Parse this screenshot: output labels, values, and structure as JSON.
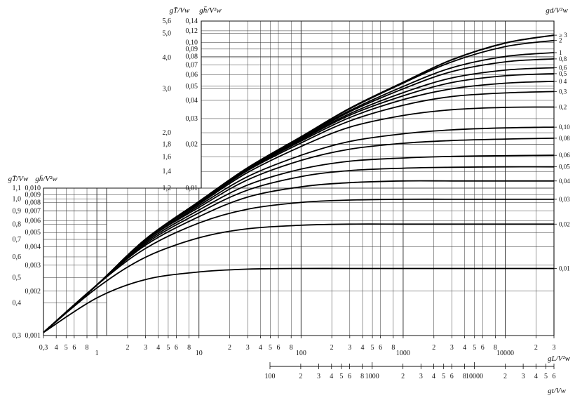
{
  "chart_data": {
    "type": "line",
    "title": "",
    "x_axis_fetch": {
      "label": "gL/V²w",
      "scale": "log",
      "range": [
        0.3,
        30000
      ],
      "ticks": [
        {
          "v": 0.3,
          "t": "0,3"
        },
        {
          "v": 0.4,
          "t": "4"
        },
        {
          "v": 0.5,
          "t": "5"
        },
        {
          "v": 0.6,
          "t": "6"
        },
        {
          "v": 0.8,
          "t": "8"
        },
        {
          "v": 1,
          "t": "1"
        },
        {
          "v": 2,
          "t": "2"
        },
        {
          "v": 3,
          "t": "3"
        },
        {
          "v": 4,
          "t": "4"
        },
        {
          "v": 5,
          "t": "5"
        },
        {
          "v": 6,
          "t": "6"
        },
        {
          "v": 8,
          "t": "8"
        },
        {
          "v": 10,
          "t": "10"
        },
        {
          "v": 20,
          "t": "2"
        },
        {
          "v": 30,
          "t": "3"
        },
        {
          "v": 40,
          "t": "4"
        },
        {
          "v": 50,
          "t": "5"
        },
        {
          "v": 60,
          "t": "6"
        },
        {
          "v": 80,
          "t": "8"
        },
        {
          "v": 100,
          "t": "100"
        },
        {
          "v": 200,
          "t": "2"
        },
        {
          "v": 300,
          "t": "3"
        },
        {
          "v": 400,
          "t": "4"
        },
        {
          "v": 500,
          "t": "5"
        },
        {
          "v": 600,
          "t": "6"
        },
        {
          "v": 800,
          "t": "8"
        },
        {
          "v": 1000,
          "t": "1000"
        },
        {
          "v": 2000,
          "t": "2"
        },
        {
          "v": 3000,
          "t": "3"
        },
        {
          "v": 4000,
          "t": "4"
        },
        {
          "v": 5000,
          "t": "5"
        },
        {
          "v": 6000,
          "t": "6"
        },
        {
          "v": 8000,
          "t": "8"
        },
        {
          "v": 10000,
          "t": "10000"
        },
        {
          "v": 20000,
          "t": "2"
        },
        {
          "v": 30000,
          "t": "3"
        }
      ]
    },
    "x_axis_duration": {
      "label": "gt/Vw",
      "scale": "log",
      "range": [
        100,
        60000
      ],
      "ticks": [
        {
          "v": 100,
          "t": "100"
        },
        {
          "v": 200,
          "t": "2"
        },
        {
          "v": 300,
          "t": "3"
        },
        {
          "v": 400,
          "t": "4"
        },
        {
          "v": 500,
          "t": "5"
        },
        {
          "v": 600,
          "t": "6"
        },
        {
          "v": 800,
          "t": "8"
        },
        {
          "v": 1000,
          "t": "1000"
        },
        {
          "v": 2000,
          "t": "2"
        },
        {
          "v": 3000,
          "t": "3"
        },
        {
          "v": 4000,
          "t": "4"
        },
        {
          "v": 5000,
          "t": "5"
        },
        {
          "v": 6000,
          "t": "6"
        },
        {
          "v": 8000,
          "t": "8"
        },
        {
          "v": 10000,
          "t": "10000"
        },
        {
          "v": 20000,
          "t": "2"
        },
        {
          "v": 30000,
          "t": "3"
        },
        {
          "v": 40000,
          "t": "4"
        },
        {
          "v": 50000,
          "t": "5"
        },
        {
          "v": 60000,
          "t": "6"
        }
      ]
    },
    "y_axis_lower_period": {
      "label": "gT̄/Vw",
      "scale": "log",
      "range": [
        0.3,
        1.1
      ],
      "ticks": [
        {
          "v": 1.1,
          "t": "1,1"
        },
        {
          "v": 1.0,
          "t": "1,0"
        },
        {
          "v": 0.9,
          "t": "0,9"
        },
        {
          "v": 0.8,
          "t": "0,8"
        },
        {
          "v": 0.7,
          "t": "0,7"
        },
        {
          "v": 0.6,
          "t": "0,6"
        },
        {
          "v": 0.5,
          "t": "0,5"
        },
        {
          "v": 0.4,
          "t": "0,4"
        },
        {
          "v": 0.3,
          "t": "0,3"
        }
      ]
    },
    "y_axis_lower_height": {
      "label": "gh̄/V²w",
      "scale": "log",
      "range": [
        0.001,
        0.01
      ],
      "ticks": [
        {
          "v": 0.01,
          "t": "0,010"
        },
        {
          "v": 0.009,
          "t": "0,009"
        },
        {
          "v": 0.008,
          "t": "0,008"
        },
        {
          "v": 0.007,
          "t": "0,007"
        },
        {
          "v": 0.006,
          "t": "0,006"
        },
        {
          "v": 0.005,
          "t": "0,005"
        },
        {
          "v": 0.004,
          "t": "0,004"
        },
        {
          "v": 0.003,
          "t": "0,003"
        },
        {
          "v": 0.002,
          "t": "0,002"
        },
        {
          "v": 0.001,
          "t": "0,001"
        }
      ]
    },
    "y_axis_upper_period": {
      "label": "gT̄/Vw",
      "scale": "log",
      "range": [
        1.2,
        5.6
      ],
      "ticks": [
        {
          "v": 5.6,
          "t": "5,6"
        },
        {
          "v": 5.0,
          "t": "5,0"
        },
        {
          "v": 4.0,
          "t": "4,0"
        },
        {
          "v": 3.0,
          "t": "3,0"
        },
        {
          "v": 2.0,
          "t": "2,0"
        },
        {
          "v": 1.8,
          "t": "1,8"
        },
        {
          "v": 1.6,
          "t": "1,6"
        },
        {
          "v": 1.4,
          "t": "1,4"
        },
        {
          "v": 1.2,
          "t": "1,2"
        }
      ]
    },
    "y_axis_upper_height": {
      "label": "gh̄/V²w",
      "scale": "log",
      "range": [
        0.01,
        0.14
      ],
      "ticks": [
        {
          "v": 0.14,
          "t": "0,14"
        },
        {
          "v": 0.12,
          "t": "0,12"
        },
        {
          "v": 0.1,
          "t": "0,10"
        },
        {
          "v": 0.09,
          "t": "0,09"
        },
        {
          "v": 0.08,
          "t": "0,08"
        },
        {
          "v": 0.07,
          "t": "0,07"
        },
        {
          "v": 0.06,
          "t": "0,06"
        },
        {
          "v": 0.05,
          "t": "0,05"
        },
        {
          "v": 0.04,
          "t": "0,04"
        },
        {
          "v": 0.03,
          "t": "0,03"
        },
        {
          "v": 0.02,
          "t": "0,02"
        },
        {
          "v": 0.01,
          "t": "0,01"
        }
      ]
    },
    "depth_axis_label": "gd/V²w",
    "series": [
      {
        "name": "0,01",
        "x": [
          0.3,
          1,
          3,
          10,
          30,
          100,
          300,
          1000,
          3000,
          10000,
          30000
        ],
        "y": [
          0.00105,
          0.0018,
          0.0024,
          0.0027,
          0.00282,
          0.00285,
          0.00285,
          0.00285,
          0.00285,
          0.00285,
          0.00285
        ]
      },
      {
        "name": "0,02",
        "x": [
          0.3,
          1,
          3,
          10,
          30,
          100,
          300,
          1000,
          3000,
          10000,
          30000
        ],
        "y": [
          0.00105,
          0.0021,
          0.0034,
          0.0046,
          0.0053,
          0.0056,
          0.0057,
          0.0057,
          0.0057,
          0.0057,
          0.0057
        ]
      },
      {
        "name": "0,03",
        "x": [
          0.3,
          1,
          3,
          10,
          30,
          100,
          300,
          1000,
          3000,
          10000,
          30000
        ],
        "y": [
          0.00105,
          0.0022,
          0.0039,
          0.0058,
          0.0072,
          0.008,
          0.0083,
          0.0084,
          0.0084,
          0.0084,
          0.0084
        ]
      },
      {
        "name": "0,04",
        "x": [
          0.3,
          1,
          3,
          10,
          30,
          100,
          300,
          1000,
          3000,
          10000,
          30000
        ],
        "y": [
          0.00105,
          0.0022,
          0.0041,
          0.0064,
          0.0087,
          0.0102,
          0.0109,
          0.0112,
          0.0112,
          0.0112,
          0.0112
        ]
      },
      {
        "name": "0,05",
        "x": [
          0.3,
          1,
          3,
          10,
          30,
          100,
          300,
          1000,
          3000,
          10000,
          30000
        ],
        "y": [
          0.00105,
          0.0022,
          0.0042,
          0.0068,
          0.0097,
          0.012,
          0.0132,
          0.0137,
          0.0139,
          0.014,
          0.014
        ]
      },
      {
        "name": "0,06",
        "x": [
          0.3,
          1,
          3,
          10,
          30,
          100,
          300,
          1000,
          3000,
          10000,
          30000
        ],
        "y": [
          0.00105,
          0.0022,
          0.0043,
          0.0071,
          0.0105,
          0.0135,
          0.0153,
          0.0161,
          0.0165,
          0.0167,
          0.0168
        ]
      },
      {
        "name": "0,08",
        "x": [
          0.3,
          1,
          3,
          10,
          30,
          100,
          300,
          1000,
          3000,
          10000,
          30000
        ],
        "y": [
          0.00105,
          0.0022,
          0.0044,
          0.0074,
          0.0114,
          0.0155,
          0.0185,
          0.0203,
          0.0212,
          0.0217,
          0.022
        ]
      },
      {
        "name": "0,10",
        "x": [
          0.3,
          1,
          3,
          10,
          30,
          100,
          300,
          1000,
          3000,
          10000,
          30000
        ],
        "y": [
          0.00105,
          0.0022,
          0.0044,
          0.0076,
          0.012,
          0.0168,
          0.0209,
          0.0236,
          0.0251,
          0.0259,
          0.0262
        ]
      },
      {
        "name": "0,2",
        "x": [
          0.3,
          1,
          3,
          10,
          30,
          100,
          300,
          1000,
          3000,
          10000,
          30000
        ],
        "y": [
          0.00105,
          0.0022,
          0.0045,
          0.0078,
          0.0128,
          0.0193,
          0.0262,
          0.0315,
          0.0345,
          0.0358,
          0.036
        ]
      },
      {
        "name": "0,3",
        "x": [
          0.3,
          1,
          3,
          10,
          30,
          100,
          300,
          1000,
          3000,
          10000,
          30000
        ],
        "y": [
          0.00105,
          0.0022,
          0.0045,
          0.0079,
          0.0132,
          0.0204,
          0.0289,
          0.037,
          0.0425,
          0.045,
          0.046
        ]
      },
      {
        "name": "0,4",
        "x": [
          0.3,
          1,
          3,
          10,
          30,
          100,
          300,
          1000,
          3000,
          10000,
          30000
        ],
        "y": [
          0.00105,
          0.0022,
          0.0045,
          0.008,
          0.0134,
          0.021,
          0.0305,
          0.0405,
          0.048,
          0.0525,
          0.054
        ]
      },
      {
        "name": "0,5",
        "x": [
          0.3,
          1,
          3,
          10,
          30,
          100,
          300,
          1000,
          3000,
          10000,
          30000
        ],
        "y": [
          0.00105,
          0.0022,
          0.0045,
          0.008,
          0.0135,
          0.0214,
          0.0316,
          0.043,
          0.053,
          0.059,
          0.061
        ]
      },
      {
        "name": "0,6",
        "x": [
          0.3,
          1,
          3,
          10,
          30,
          100,
          300,
          1000,
          3000,
          10000,
          30000
        ],
        "y": [
          0.00105,
          0.0022,
          0.0045,
          0.008,
          0.0136,
          0.0217,
          0.0324,
          0.0452,
          0.057,
          0.0645,
          0.067
        ]
      },
      {
        "name": "0,8",
        "x": [
          0.3,
          1,
          3,
          10,
          30,
          100,
          300,
          1000,
          3000,
          10000,
          30000
        ],
        "y": [
          0.00105,
          0.0022,
          0.0045,
          0.0081,
          0.0137,
          0.022,
          0.0334,
          0.048,
          0.063,
          0.0735,
          0.077
        ]
      },
      {
        "name": "1",
        "x": [
          0.3,
          1,
          3,
          10,
          30,
          100,
          300,
          1000,
          3000,
          10000,
          30000
        ],
        "y": [
          0.00105,
          0.0022,
          0.0045,
          0.0081,
          0.0137,
          0.0222,
          0.034,
          0.0498,
          0.067,
          0.08,
          0.085
        ]
      },
      {
        "name": "2",
        "x": [
          0.3,
          1,
          3,
          10,
          30,
          100,
          300,
          1000,
          3000,
          10000,
          30000
        ],
        "y": [
          0.00105,
          0.0022,
          0.0045,
          0.0081,
          0.0138,
          0.0224,
          0.035,
          0.0525,
          0.0735,
          0.0935,
          0.103
        ]
      },
      {
        "name": "≥ 3",
        "x": [
          0.3,
          1,
          3,
          10,
          30,
          100,
          300,
          1000,
          3000,
          10000,
          30000
        ],
        "y": [
          0.00105,
          0.0022,
          0.0045,
          0.0081,
          0.0138,
          0.0225,
          0.0353,
          0.0532,
          0.076,
          0.099,
          0.112
        ]
      }
    ],
    "depth_labels_upper": [
      "≥ 3",
      "2",
      "1",
      "0,8",
      "0,6",
      "0,5",
      "0 4",
      "0,3",
      "0,2"
    ],
    "depth_labels_lower": [
      "0,10",
      "0,08",
      "0,06",
      "0,05",
      "0,04",
      "0,03",
      "0,02",
      "0,01"
    ],
    "grid": true
  }
}
